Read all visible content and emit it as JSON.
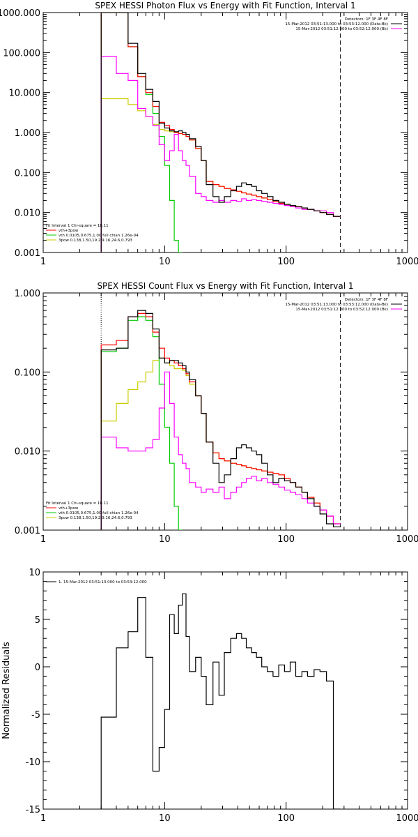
{
  "chart_data": [
    {
      "type": "line",
      "title": "SPEX HESSI Photon Flux vs Energy with Fit Function, Interval 1",
      "xscale": "log",
      "yscale": "log",
      "xlim": [
        1,
        1000
      ],
      "ylim": [
        0.001,
        1000
      ],
      "xticks": [
        "1",
        "10",
        "100",
        "1000"
      ],
      "yticks": [
        "0.001",
        "0.010",
        "0.100",
        "1.000",
        "10.000",
        "100.000",
        "1000.000"
      ],
      "vlines": [
        {
          "x": 3,
          "style": "dotted"
        },
        {
          "x": 280,
          "style": "dashed"
        }
      ],
      "legend_tr": [
        "Detectors: 1F 3F 4F 8F",
        "15-Mar-2012 03:51:13.000 to 03:53:12.000 (Data-Bk)",
        "15-Mar-2012 03:51:12.000 to 03:52:12.000 (Bk)"
      ],
      "legend_tr_colors": [
        "",
        "#000000",
        "#ff00ff"
      ],
      "legend_bl": [
        "Fit Interval 1    Chi-square = 18.11",
        "vth+3pow",
        "vth 0.0105,0.675,1.00  full chian 1.26e-04",
        "3pow 0.138,1.50,19.2,9.16,24.6,0.793"
      ],
      "legend_bl_colors": [
        "#000000",
        "#ff0000",
        "#00cc00",
        "#cccc00"
      ],
      "edges": [
        3,
        4,
        5,
        6,
        7,
        8,
        9,
        10,
        11,
        12,
        13,
        14,
        15,
        16,
        18,
        20,
        22,
        25,
        28,
        31,
        35,
        39,
        43,
        47,
        52,
        57,
        63,
        70,
        78,
        87,
        97,
        108,
        120,
        135,
        150,
        170,
        190,
        215,
        245,
        280
      ],
      "series": [
        {
          "name": "Data-Bk",
          "color": "#000000",
          "values": [
            1000,
            1000,
            170,
            30,
            12,
            6,
            1.7,
            1.3,
            1.1,
            1.05,
            1.1,
            1.0,
            0.9,
            0.7,
            0.45,
            0.2,
            0.05,
            0.025,
            0.018,
            0.025,
            0.035,
            0.045,
            0.055,
            0.05,
            0.045,
            0.035,
            0.03,
            0.025,
            0.02,
            0.018,
            0.016,
            0.015,
            0.014,
            0.013,
            0.012,
            0.011,
            0.01,
            0.009,
            0.008
          ]
        },
        {
          "name": "Bk",
          "color": "#ff00ff",
          "values": [
            80,
            30,
            20,
            4,
            2.5,
            1.5,
            0.5,
            0.2,
            0.35,
            0.9,
            0.35,
            0.2,
            0.15,
            0.08,
            0.03,
            0.025,
            0.02,
            0.018,
            0.02,
            0.018,
            0.02,
            0.019,
            0.022,
            0.02,
            0.021,
            0.02,
            0.019,
            0.018,
            0.017,
            0.016,
            0.015,
            0.014,
            0.013,
            0.012,
            0.012,
            0.011,
            0.011,
            0.01,
            0.008
          ]
        },
        {
          "name": "vth+3pow",
          "color": "#ff0000",
          "values": [
            1000,
            1000,
            140,
            25,
            10,
            4.5,
            1.8,
            1.5,
            1.2,
            1.0,
            0.95,
            0.9,
            0.8,
            0.65,
            0.4,
            0.2,
            0.06,
            0.05,
            0.045,
            0.04,
            0.037,
            0.034,
            0.031,
            0.029,
            0.027,
            0.025,
            0.023,
            0.021,
            0.019,
            0.017,
            0.016,
            0.015,
            0.014,
            0.013,
            0.012,
            0.011,
            0.01,
            0.009,
            0.008
          ]
        },
        {
          "name": "vth",
          "color": "#00cc00",
          "values": [
            1000,
            1000,
            140,
            25,
            9,
            3,
            0.8,
            0.15,
            0.02,
            0.002,
            0.0003,
            null,
            null,
            null,
            null,
            null,
            null,
            null,
            null,
            null,
            null,
            null,
            null,
            null,
            null,
            null,
            null,
            null,
            null,
            null,
            null,
            null,
            null,
            null,
            null,
            null,
            null,
            null,
            null
          ]
        },
        {
          "name": "3pow",
          "color": "#cccc00",
          "values": [
            7,
            7,
            5,
            3.5,
            2.5,
            1.6,
            1.2,
            1.1,
            1.05,
            1.0,
            0.95,
            0.9,
            0.8,
            0.65,
            0.4,
            0.2,
            0.06,
            0.05,
            0.045,
            0.04,
            0.037,
            0.034,
            0.031,
            0.029,
            0.027,
            0.025,
            0.023,
            0.021,
            0.019,
            0.017,
            0.016,
            0.015,
            0.014,
            0.013,
            0.012,
            0.011,
            0.01,
            0.009,
            0.008
          ]
        }
      ]
    },
    {
      "type": "line",
      "title": "SPEX HESSI Count Flux vs Energy with Fit Function, Interval 1",
      "xscale": "log",
      "yscale": "log",
      "xlim": [
        1,
        1000
      ],
      "ylim": [
        0.001,
        1
      ],
      "xticks": [
        "1",
        "10",
        "100",
        "1000"
      ],
      "yticks": [
        "0.001",
        "0.010",
        "0.100",
        "1.000"
      ],
      "vlines": [
        {
          "x": 3,
          "style": "dotted"
        },
        {
          "x": 280,
          "style": "dashed"
        }
      ],
      "legend_tr": [
        "Detectors: 1F 3F 4F 8F",
        "15-Mar-2012 03:51:13.000 to 03:53:12.000 (Data-Bk)",
        "15-Mar-2012 03:51:12.000 to 03:52:12.000 (Bk)"
      ],
      "legend_tr_colors": [
        "",
        "#000000",
        "#ff00ff"
      ],
      "legend_bl": [
        "Fit Interval 1    Chi-square = 18.11",
        "vth+3pow",
        "vth 0.0105,0.675,1.00  full chian 1.26e-04",
        "3pow 0.138,1.50,19.2,9.16,24.6,0.793"
      ],
      "legend_bl_colors": [
        "#000000",
        "#ff0000",
        "#00cc00",
        "#cccc00"
      ],
      "edges": [
        3,
        4,
        5,
        6,
        7,
        8,
        9,
        10,
        11,
        12,
        13,
        14,
        15,
        16,
        18,
        20,
        22,
        25,
        28,
        31,
        35,
        39,
        43,
        47,
        52,
        57,
        63,
        70,
        78,
        87,
        97,
        108,
        120,
        135,
        150,
        170,
        190,
        215,
        245,
        280
      ],
      "series": [
        {
          "name": "Data-Bk",
          "color": "#000000",
          "values": [
            0.19,
            0.2,
            0.5,
            0.6,
            0.55,
            0.35,
            0.15,
            0.13,
            0.14,
            0.14,
            0.13,
            0.12,
            0.1,
            0.08,
            0.05,
            0.03,
            0.013,
            0.007,
            0.004,
            0.005,
            0.008,
            0.011,
            0.012,
            0.011,
            0.01,
            0.009,
            0.007,
            0.005,
            0.004,
            0.0045,
            0.0042,
            0.004,
            0.0035,
            0.003,
            0.0025,
            0.002,
            0.0016,
            0.0012,
            0.0011
          ]
        },
        {
          "name": "Bk",
          "color": "#ff00ff",
          "values": [
            0.015,
            0.011,
            0.01,
            0.01,
            0.011,
            0.014,
            0.035,
            0.1,
            0.04,
            0.015,
            0.009,
            0.007,
            0.006,
            0.004,
            0.0035,
            0.003,
            0.0033,
            0.003,
            0.0035,
            0.0025,
            0.003,
            0.0035,
            0.004,
            0.0045,
            0.0048,
            0.0042,
            0.0045,
            0.004,
            0.0038,
            0.0035,
            0.0032,
            0.003,
            0.0028,
            0.0025,
            0.0022,
            0.002,
            0.0018,
            0.0015,
            0.0012
          ]
        },
        {
          "name": "vth+3pow",
          "color": "#ff0000",
          "values": [
            0.22,
            0.25,
            0.5,
            0.55,
            0.5,
            0.32,
            0.2,
            0.15,
            0.14,
            0.13,
            0.12,
            0.11,
            0.095,
            0.075,
            0.05,
            0.03,
            0.013,
            0.0095,
            0.008,
            0.0075,
            0.007,
            0.0068,
            0.0065,
            0.0062,
            0.006,
            0.0058,
            0.0056,
            0.0054,
            0.0052,
            0.005,
            0.0045,
            0.004,
            0.0035,
            0.003,
            0.0026,
            0.0022,
            0.0018,
            0.0015,
            0.0012
          ]
        },
        {
          "name": "vth",
          "color": "#00cc00",
          "values": [
            0.18,
            0.2,
            0.45,
            0.5,
            0.45,
            0.28,
            0.07,
            0.02,
            0.007,
            0.002,
            0.0008,
            null,
            null,
            null,
            null,
            null,
            null,
            null,
            null,
            null,
            null,
            null,
            null,
            null,
            null,
            null,
            null,
            null,
            null,
            null,
            null,
            null,
            null,
            null,
            null,
            null,
            null,
            null,
            null
          ]
        },
        {
          "name": "3pow",
          "color": "#cccc00",
          "values": [
            0.024,
            0.04,
            0.06,
            0.075,
            0.1,
            0.14,
            0.15,
            0.13,
            0.12,
            0.11,
            0.11,
            0.105,
            0.09,
            0.07,
            0.05,
            0.03,
            0.013,
            0.0095,
            0.008,
            0.0075,
            0.007,
            0.0068,
            0.0065,
            0.0062,
            0.006,
            0.0058,
            0.0056,
            0.0054,
            0.0052,
            0.005,
            0.0045,
            0.004,
            0.0035,
            0.003,
            0.0026,
            0.0022,
            0.0018,
            0.0015,
            0.0012
          ]
        }
      ]
    },
    {
      "type": "line",
      "title": "",
      "ylabel": "Normalized Residuals",
      "xscale": "log",
      "yscale": "linear",
      "xlim": [
        1,
        1000
      ],
      "ylim": [
        -15,
        10
      ],
      "xticks": [
        "1",
        "10",
        "100",
        "1000"
      ],
      "yticks": [
        "10",
        "5",
        "0",
        "-5",
        "-10",
        "-15"
      ],
      "legend_tr": [],
      "legend_tr_colors": [],
      "legend_bl": [
        "1. 15-Mar-2012 03:51:13.000 to 03:53:12.000"
      ],
      "legend_bl_colors": [
        "#000000"
      ],
      "legend_pos": "top-left",
      "edges": [
        3,
        4,
        5,
        6,
        7,
        8,
        9,
        10,
        11,
        12,
        13,
        14,
        15,
        16,
        18,
        20,
        22,
        25,
        28,
        31,
        35,
        39,
        43,
        47,
        52,
        57,
        63,
        70,
        78,
        87,
        97,
        108,
        120,
        135,
        150,
        170,
        190,
        215,
        245,
        280
      ],
      "series": [
        {
          "name": "1. 15-Mar-2012 03:51:13.000 to 03:53:12.000",
          "color": "#000000",
          "values": [
            -5.3,
            2,
            3.7,
            7.3,
            1,
            -11,
            -8.5,
            -4.5,
            5.5,
            3.5,
            6.5,
            7.7,
            3.2,
            -0.5,
            1,
            -1,
            -4,
            0.5,
            -3,
            1.5,
            3,
            3.5,
            3,
            2,
            1.5,
            1,
            0,
            -0.5,
            -1,
            0.2,
            -0.5,
            0.5,
            -1,
            -0.5,
            -1,
            -0.3,
            -0.5,
            -1.5,
            -15
          ]
        }
      ]
    }
  ]
}
